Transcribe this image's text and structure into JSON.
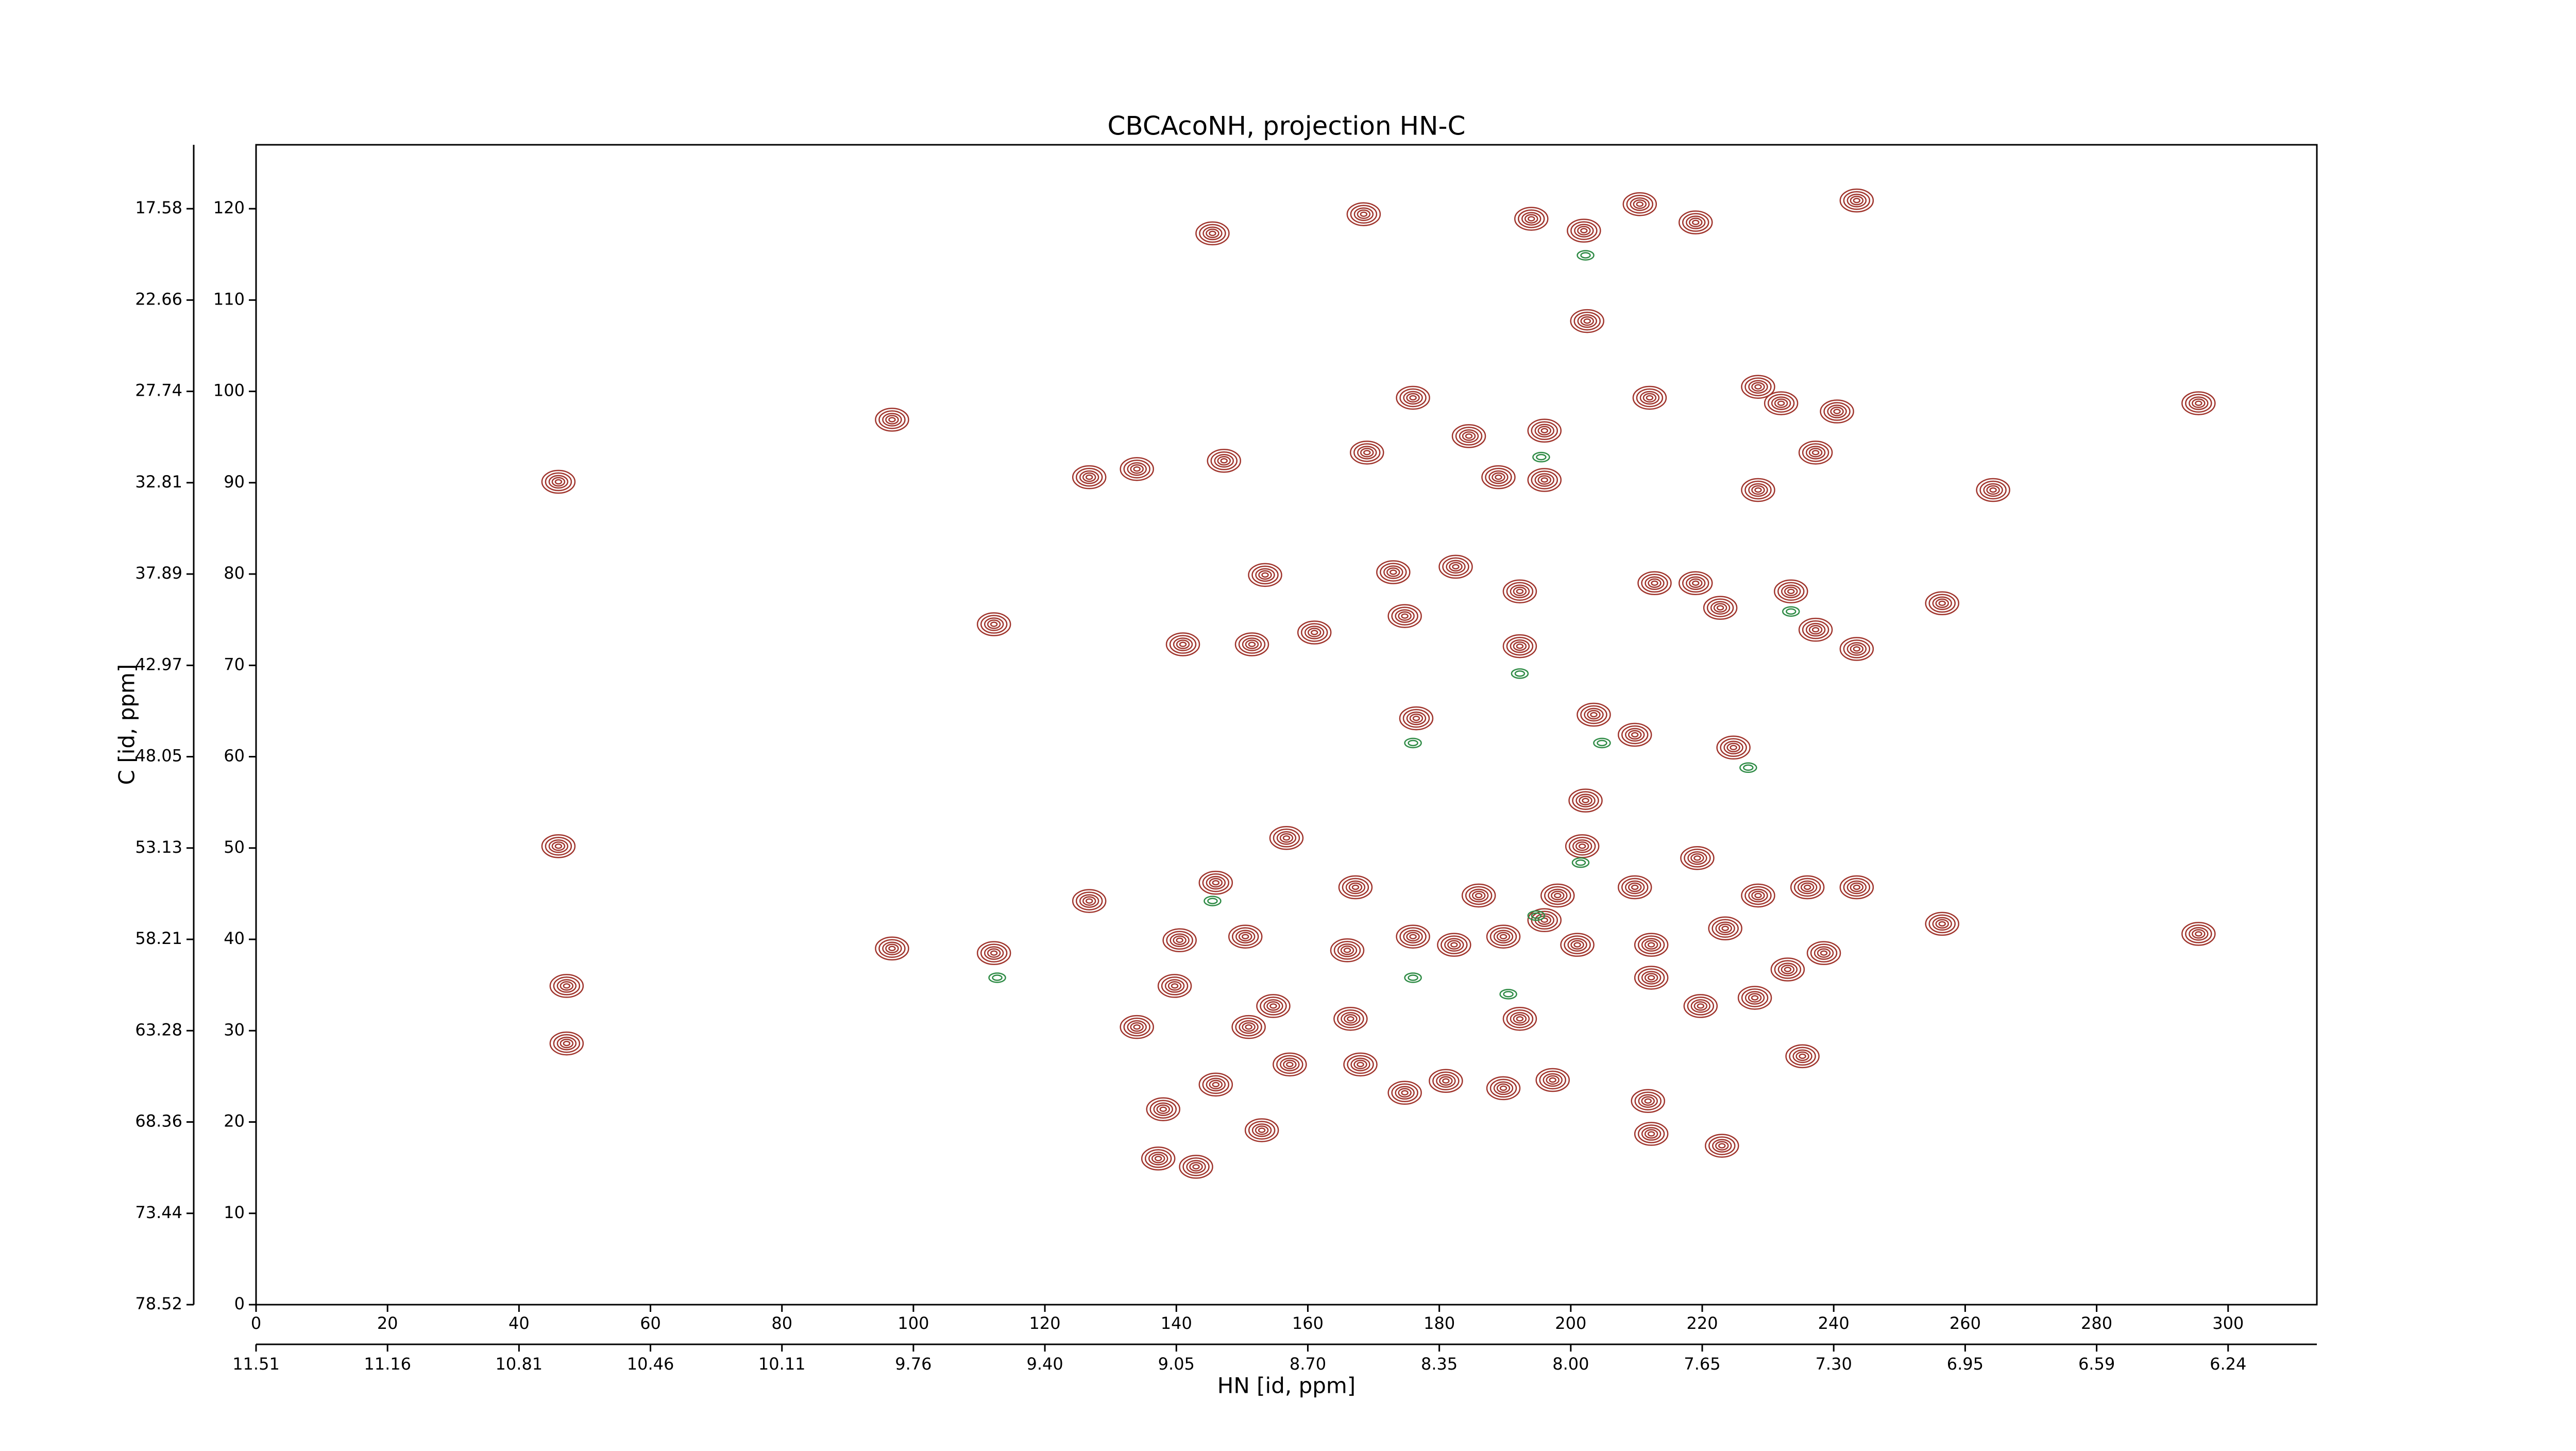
{
  "chart_data": {
    "type": "contour",
    "title": "CBCAcoNH, projection HN-C",
    "xlabel": "HN [id, ppm]",
    "ylabel": "C [id, ppm]",
    "xlim": [
      0,
      313.5
    ],
    "ylim": [
      0,
      127
    ],
    "xticks": [
      0,
      20,
      40,
      60,
      80,
      100,
      120,
      140,
      160,
      180,
      200,
      220,
      240,
      260,
      280,
      300
    ],
    "x2ticks": [
      {
        "value": 0,
        "label": "11.51"
      },
      {
        "value": 20,
        "label": "11.16"
      },
      {
        "value": 40,
        "label": "10.81"
      },
      {
        "value": 60,
        "label": "10.46"
      },
      {
        "value": 80,
        "label": "10.11"
      },
      {
        "value": 100,
        "label": "9.76"
      },
      {
        "value": 120,
        "label": "9.40"
      },
      {
        "value": 140,
        "label": "9.05"
      },
      {
        "value": 160,
        "label": "8.70"
      },
      {
        "value": 180,
        "label": "8.35"
      },
      {
        "value": 200,
        "label": "8.00"
      },
      {
        "value": 220,
        "label": "7.65"
      },
      {
        "value": 240,
        "label": "7.30"
      },
      {
        "value": 260,
        "label": "6.95"
      },
      {
        "value": 280,
        "label": "6.59"
      },
      {
        "value": 300,
        "label": "6.24"
      }
    ],
    "yticks": [
      0,
      10,
      20,
      30,
      40,
      50,
      60,
      70,
      80,
      90,
      100,
      110,
      120
    ],
    "y2ticks": [
      {
        "value": 0,
        "label": "78.52"
      },
      {
        "value": 10,
        "label": "73.44"
      },
      {
        "value": 20,
        "label": "68.36"
      },
      {
        "value": 30,
        "label": "63.28"
      },
      {
        "value": 40,
        "label": "58.21"
      },
      {
        "value": 50,
        "label": "53.13"
      },
      {
        "value": 60,
        "label": "48.05"
      },
      {
        "value": 70,
        "label": "42.97"
      },
      {
        "value": 80,
        "label": "37.89"
      },
      {
        "value": 90,
        "label": "32.81"
      },
      {
        "value": 100,
        "label": "27.74"
      },
      {
        "value": 110,
        "label": "22.66"
      },
      {
        "value": 120,
        "label": "17.58"
      }
    ],
    "series": [
      {
        "color": "#a0352d",
        "x": [
          145.5,
          168.5,
          194,
          202,
          210.5,
          219,
          243.5,
          202.5,
          176,
          212,
          228.5,
          232,
          240.5,
          295.5,
          196,
          184.5,
          169,
          189,
          196,
          46,
          126.75,
          134,
          147.25,
          228.5,
          237.25,
          264.25,
          96.75,
          173,
          153.5,
          182.5,
          192.25,
          212.75,
          219,
          233.5,
          256.5,
          112.25,
          141,
          151.5,
          161,
          174.75,
          192.25,
          222.75,
          237.25,
          243.5,
          203.5,
          176.5,
          209.75,
          224.75,
          202.25,
          201.75,
          156.75,
          46,
          219.25,
          146,
          167.25,
          186,
          198,
          209.75,
          228.5,
          236,
          243.5,
          126.75,
          196,
          176,
          182.25,
          189.75,
          201,
          212.25,
          223.5,
          256.5,
          295.5,
          96.75,
          112.25,
          140.5,
          150.5,
          166,
          212.25,
          238.5,
          233,
          47.25,
          139.75,
          154.75,
          219.75,
          228,
          192.25,
          134,
          166.5,
          151,
          235.25,
          47.25,
          146,
          157.25,
          168,
          174.75,
          181,
          189.75,
          197.25,
          211.75,
          212.25,
          138,
          153,
          223,
          137.25,
          143
        ],
        "y": [
          117.3,
          119.4,
          118.9,
          117.6,
          120.5,
          118.5,
          120.9,
          107.7,
          99.3,
          99.3,
          100.5,
          98.7,
          97.8,
          98.7,
          95.7,
          95.1,
          93.3,
          90.6,
          90.3,
          90.1,
          90.6,
          91.5,
          92.4,
          89.2,
          93.3,
          89.2,
          96.9,
          80.2,
          79.9,
          80.8,
          78.1,
          79,
          79,
          78.1,
          76.8,
          74.5,
          72.3,
          72.3,
          73.6,
          75.4,
          72.1,
          76.3,
          73.9,
          71.8,
          64.6,
          64.2,
          62.4,
          61,
          55.2,
          50.2,
          51.1,
          50.2,
          48.9,
          46.2,
          45.7,
          44.8,
          44.8,
          45.7,
          44.8,
          45.7,
          45.7,
          44.2,
          42.1,
          40.3,
          39.4,
          40.3,
          39.4,
          39.4,
          41.2,
          41.7,
          40.6,
          39,
          38.5,
          39.9,
          40.3,
          38.8,
          35.8,
          38.5,
          36.7,
          34.9,
          34.9,
          32.7,
          32.7,
          33.6,
          31.3,
          30.4,
          31.3,
          30.4,
          27.2,
          28.6,
          24.1,
          26.3,
          26.3,
          23.2,
          24.5,
          23.7,
          24.6,
          22.3,
          18.7,
          21.4,
          19.1,
          17.4,
          16,
          15.1
        ]
      },
      {
        "color": "#2e8b45",
        "x": [
          202.25,
          195.5,
          192.25,
          176,
          204.75,
          201.5,
          194.75,
          145.5,
          112.75,
          176,
          190.5,
          233.5,
          227
        ],
        "y": [
          114.9,
          92.8,
          69.1,
          61.5,
          61.5,
          48.4,
          42.6,
          44.2,
          35.8,
          35.8,
          34,
          75.9,
          58.8
        ]
      }
    ]
  }
}
